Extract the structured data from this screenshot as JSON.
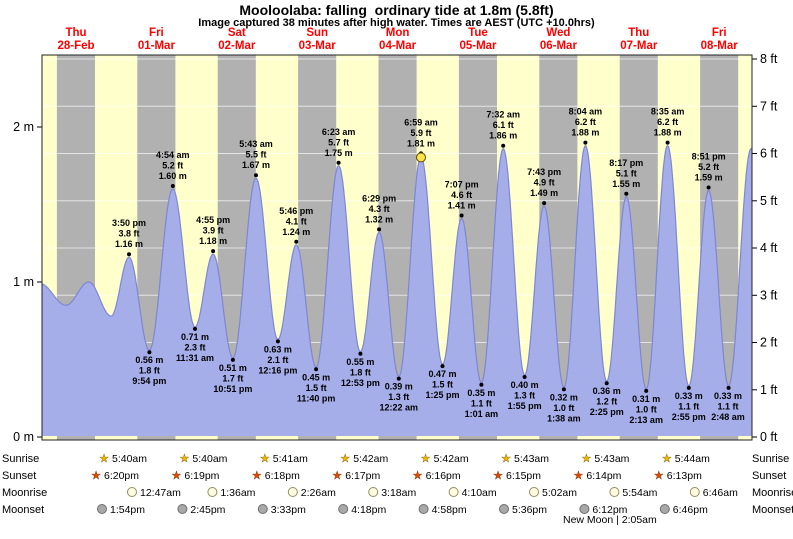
{
  "chart_data": {
    "type": "area",
    "title": "Mooloolaba: falling  ordinary tide at 1.8m (5.8ft)",
    "subtitle": "Image captured 38 minutes after high water. Times are AEST (UTC +10.0hrs)",
    "x_axis": {
      "days": [
        {
          "name": "Thu",
          "date": "28-Feb"
        },
        {
          "name": "Fri",
          "date": "01-Mar"
        },
        {
          "name": "Sat",
          "date": "02-Mar"
        },
        {
          "name": "Sun",
          "date": "03-Mar"
        },
        {
          "name": "Mon",
          "date": "04-Mar"
        },
        {
          "name": "Tue",
          "date": "05-Mar"
        },
        {
          "name": "Wed",
          "date": "06-Mar"
        },
        {
          "name": "Thu",
          "date": "07-Mar"
        },
        {
          "name": "Fri",
          "date": "08-Mar"
        }
      ]
    },
    "y_axis_left": {
      "unit": "m",
      "ticks": [
        "0 m",
        "1 m",
        "2 m"
      ]
    },
    "y_axis_right": {
      "unit": "ft",
      "ticks": [
        "0 ft",
        "1 ft",
        "2 ft",
        "3 ft",
        "4 ft",
        "5 ft",
        "6 ft",
        "7 ft",
        "8 ft"
      ]
    },
    "ylim_m": [
      0,
      2.5
    ],
    "ylim_ft": [
      0,
      8
    ],
    "grid": true,
    "legend": false,
    "current_tide_marker": "yellow dot on the 6:59 am 04-Mar high tide",
    "tides": [
      {
        "day": 0,
        "time": "3:50 pm",
        "ft": "3.8 ft",
        "m": "1.16 m",
        "type": "high"
      },
      {
        "day": 0,
        "time": "9:54 pm",
        "ft": "1.8 ft",
        "m": "0.56 m",
        "type": "low"
      },
      {
        "day": 1,
        "time": "4:54 am",
        "ft": "5.2 ft",
        "m": "1.60 m",
        "type": "high"
      },
      {
        "day": 1,
        "time": "11:31 am",
        "ft": "2.3 ft",
        "m": "0.71 m",
        "type": "low"
      },
      {
        "day": 1,
        "time": "4:55 pm",
        "ft": "3.9 ft",
        "m": "1.18 m",
        "type": "high"
      },
      {
        "day": 1,
        "time": "10:51 pm",
        "ft": "1.7 ft",
        "m": "0.51 m",
        "type": "low"
      },
      {
        "day": 2,
        "time": "5:43 am",
        "ft": "5.5 ft",
        "m": "1.67 m",
        "type": "high"
      },
      {
        "day": 2,
        "time": "12:16 pm",
        "ft": "2.1 ft",
        "m": "0.63 m",
        "type": "low"
      },
      {
        "day": 2,
        "time": "5:46 pm",
        "ft": "4.1 ft",
        "m": "1.24 m",
        "type": "high"
      },
      {
        "day": 2,
        "time": "11:40 pm",
        "ft": "1.5 ft",
        "m": "0.45 m",
        "type": "low"
      },
      {
        "day": 3,
        "time": "6:23 am",
        "ft": "5.7 ft",
        "m": "1.75 m",
        "type": "high"
      },
      {
        "day": 3,
        "time": "12:53 pm",
        "ft": "1.8 ft",
        "m": "0.55 m",
        "type": "low"
      },
      {
        "day": 3,
        "time": "6:29 pm",
        "ft": "4.3 ft",
        "m": "1.32 m",
        "type": "high"
      },
      {
        "day": 4,
        "time": "12:22 am",
        "ft": "1.3 ft",
        "m": "0.39 m",
        "type": "low"
      },
      {
        "day": 4,
        "time": "6:59 am",
        "ft": "5.9 ft",
        "m": "1.81 m",
        "type": "high",
        "current": true
      },
      {
        "day": 4,
        "time": "1:25 pm",
        "ft": "1.5 ft",
        "m": "0.47 m",
        "type": "low"
      },
      {
        "day": 4,
        "time": "7:07 pm",
        "ft": "4.6 ft",
        "m": "1.41 m",
        "type": "high"
      },
      {
        "day": 5,
        "time": "1:01 am",
        "ft": "1.1 ft",
        "m": "0.35 m",
        "type": "low"
      },
      {
        "day": 5,
        "time": "7:32 am",
        "ft": "6.1 ft",
        "m": "1.86 m",
        "type": "high"
      },
      {
        "day": 5,
        "time": "1:55 pm",
        "ft": "1.3 ft",
        "m": "0.40 m",
        "type": "low"
      },
      {
        "day": 5,
        "time": "7:43 pm",
        "ft": "4.9 ft",
        "m": "1.49 m",
        "type": "high"
      },
      {
        "day": 6,
        "time": "1:38 am",
        "ft": "1.0 ft",
        "m": "0.32 m",
        "type": "low"
      },
      {
        "day": 6,
        "time": "8:04 am",
        "ft": "6.2 ft",
        "m": "1.88 m",
        "type": "high"
      },
      {
        "day": 6,
        "time": "2:25 pm",
        "ft": "1.2 ft",
        "m": "0.36 m",
        "type": "low"
      },
      {
        "day": 6,
        "time": "8:17 pm",
        "ft": "5.1 ft",
        "m": "1.55 m",
        "type": "high"
      },
      {
        "day": 7,
        "time": "2:13 am",
        "ft": "1.0 ft",
        "m": "0.31 m",
        "type": "low"
      },
      {
        "day": 7,
        "time": "8:35 am",
        "ft": "6.2 ft",
        "m": "1.88 m",
        "type": "high"
      },
      {
        "day": 7,
        "time": "2:55 pm",
        "ft": "1.1 ft",
        "m": "0.33 m",
        "type": "low"
      },
      {
        "day": 7,
        "time": "8:51 pm",
        "ft": "5.2 ft",
        "m": "1.59 m",
        "type": "high"
      },
      {
        "day": 8,
        "time": "2:48 am",
        "ft": "1.1 ft",
        "m": "0.33 m",
        "type": "low"
      }
    ],
    "colors": {
      "day_band": "#ffffcc",
      "night_band": "#b1b1b1",
      "tide_fill": "#a6aeea",
      "tide_stroke": "#7d87d2",
      "day_label": "#ff0000",
      "current_marker": "#ffe34d"
    }
  },
  "astronomy": {
    "rows": [
      {
        "label": "Sunrise",
        "icon": "sunrise-star",
        "times": [
          "5:40am",
          "5:40am",
          "5:41am",
          "5:42am",
          "5:42am",
          "5:43am",
          "5:43am",
          "5:44am"
        ]
      },
      {
        "label": "Sunset",
        "icon": "sunset-star",
        "times": [
          "6:20pm",
          "6:19pm",
          "6:18pm",
          "6:17pm",
          "6:16pm",
          "6:15pm",
          "6:14pm",
          "6:13pm"
        ]
      },
      {
        "label": "Moonrise",
        "icon": "moonrise-circle",
        "times": [
          "12:47am",
          "1:36am",
          "2:26am",
          "3:18am",
          "4:10am",
          "5:02am",
          "5:54am",
          "6:46am"
        ]
      },
      {
        "label": "Moonset",
        "icon": "moonset-circle",
        "times": [
          "1:54pm",
          "2:45pm",
          "3:33pm",
          "4:18pm",
          "4:58pm",
          "5:36pm",
          "6:12pm",
          "6:46pm"
        ]
      }
    ],
    "new_moon": "New Moon | 2:05am"
  }
}
